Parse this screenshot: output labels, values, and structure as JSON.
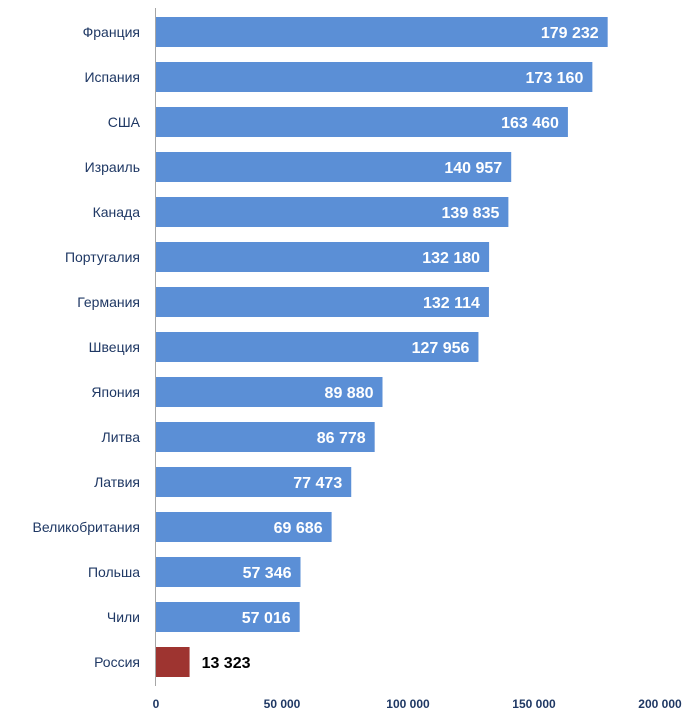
{
  "chart_data": {
    "type": "bar",
    "orientation": "horizontal",
    "categories": [
      "Франция",
      "Испания",
      "США",
      "Израиль",
      "Канада",
      "Португалия",
      "Германия",
      "Швеция",
      "Япония",
      "Литва",
      "Латвия",
      "Великобритания",
      "Польша",
      "Чили",
      "Россия"
    ],
    "values": [
      179232,
      173160,
      163460,
      140957,
      139835,
      132180,
      132114,
      127956,
      89880,
      86778,
      77473,
      69686,
      57346,
      57016,
      13323
    ],
    "value_labels": [
      "179 232",
      "173 160",
      "163 460",
      "140 957",
      "139 835",
      "132 180",
      "132 114",
      "127 956",
      "89 880",
      "86 778",
      "77 473",
      "69 686",
      "57 346",
      "57 016",
      "13 323"
    ],
    "bar_colors": [
      "#5b8fd6",
      "#5b8fd6",
      "#5b8fd6",
      "#5b8fd6",
      "#5b8fd6",
      "#5b8fd6",
      "#5b8fd6",
      "#5b8fd6",
      "#5b8fd6",
      "#5b8fd6",
      "#5b8fd6",
      "#5b8fd6",
      "#5b8fd6",
      "#5b8fd6",
      "#9e3430"
    ],
    "xlim": [
      0,
      200000
    ],
    "xticks": [
      0,
      50000,
      100000,
      150000,
      200000
    ],
    "xtick_labels": [
      "0",
      "50 000",
      "100 000",
      "150 000",
      "200 000"
    ],
    "title": "",
    "xlabel": "",
    "ylabel": "",
    "grid": false,
    "legend": "none"
  }
}
